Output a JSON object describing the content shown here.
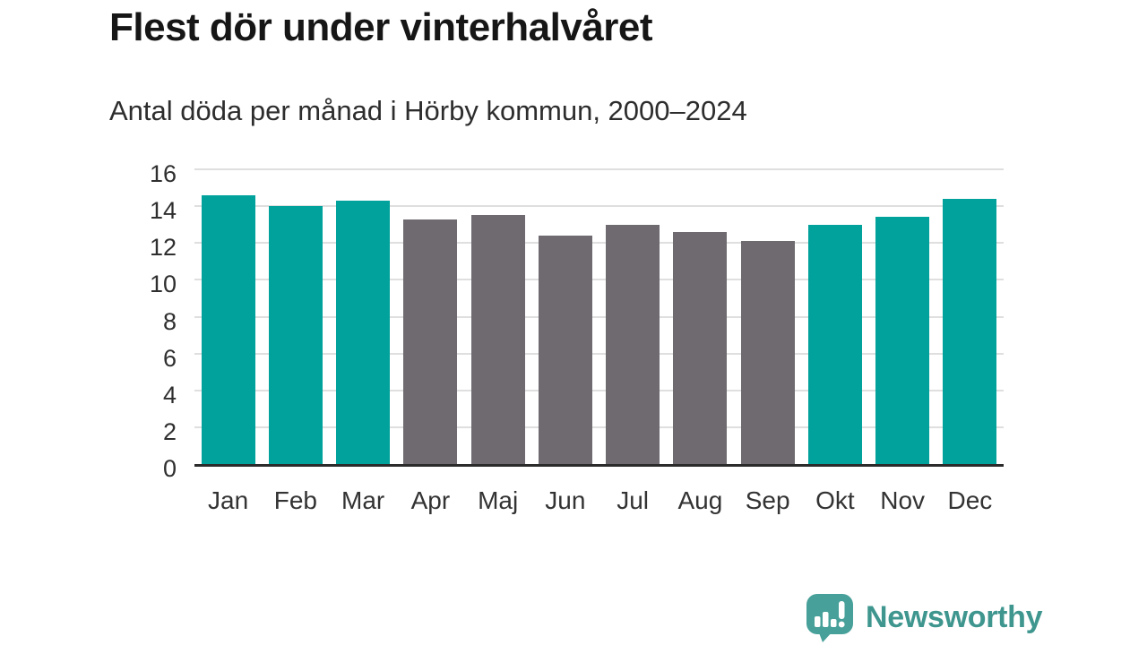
{
  "header": {
    "title": "Flest dör under vinterhalvåret",
    "subtitle": "Antal döda per månad i Hörby kommun, 2000–2024"
  },
  "chart_data": {
    "type": "bar",
    "title": "Flest dör under vinterhalvåret",
    "subtitle": "Antal döda per månad i Hörby kommun, 2000–2024",
    "categories": [
      "Jan",
      "Feb",
      "Mar",
      "Apr",
      "Maj",
      "Jun",
      "Jul",
      "Aug",
      "Sep",
      "Okt",
      "Nov",
      "Dec"
    ],
    "values": [
      14.6,
      14.0,
      14.3,
      13.3,
      13.5,
      12.4,
      13.0,
      12.6,
      12.1,
      13.0,
      13.4,
      14.4
    ],
    "bar_colors": [
      "#00a29b",
      "#00a29b",
      "#00a29b",
      "#6e6a70",
      "#6e6a70",
      "#6e6a70",
      "#6e6a70",
      "#6e6a70",
      "#6e6a70",
      "#00a29b",
      "#00a29b",
      "#00a29b"
    ],
    "colors": {
      "winter_highlight": "#00a29b",
      "summer_muted": "#6e6a70"
    },
    "xlabel": "",
    "ylabel": "",
    "ylim": [
      0,
      16
    ],
    "yticks": [
      0,
      2,
      4,
      6,
      8,
      10,
      12,
      14,
      16
    ],
    "grid": true,
    "legend": false
  },
  "branding": {
    "name": "Newsworthy",
    "icon": "newsworthy-speech-bubble-bar-chart-icon",
    "color": "#3f968f",
    "icon_color": "#47a099"
  }
}
